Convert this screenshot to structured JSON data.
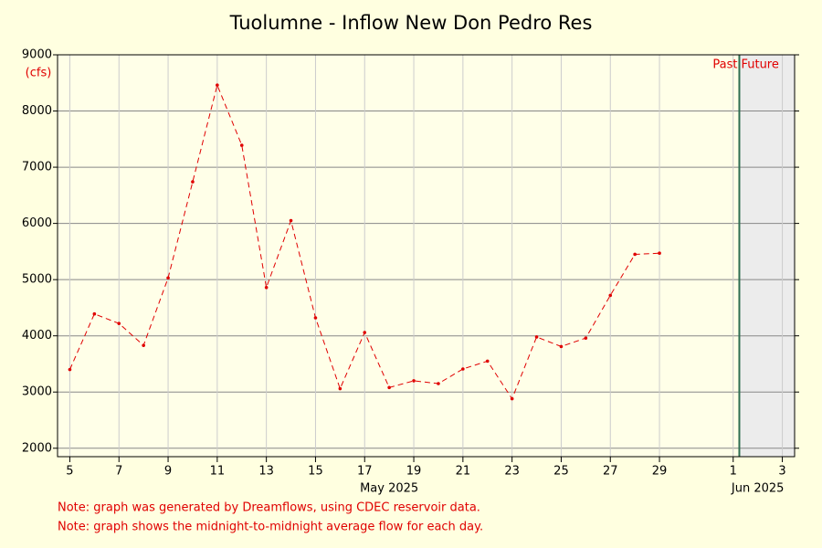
{
  "chart_data": {
    "type": "line",
    "title": "Tuolumne - Inflow New Don Pedro Res",
    "y_label": "(cfs)",
    "x": [
      "2025-05-05",
      "2025-05-06",
      "2025-05-07",
      "2025-05-08",
      "2025-05-09",
      "2025-05-10",
      "2025-05-11",
      "2025-05-12",
      "2025-05-13",
      "2025-05-14",
      "2025-05-15",
      "2025-05-16",
      "2025-05-17",
      "2025-05-18",
      "2025-05-19",
      "2025-05-20",
      "2025-05-21",
      "2025-05-22",
      "2025-05-23",
      "2025-05-24",
      "2025-05-25",
      "2025-05-26",
      "2025-05-27",
      "2025-05-28",
      "2025-05-29"
    ],
    "series": [
      {
        "name": "Inflow",
        "color": "#e00000",
        "values": [
          3400,
          4390,
          4220,
          3830,
          5030,
          6740,
          8460,
          7390,
          4860,
          6050,
          4320,
          3060,
          4060,
          3080,
          3200,
          3150,
          3410,
          3550,
          2880,
          3980,
          3810,
          3960,
          4720,
          5450,
          5470
        ]
      }
    ],
    "xlim": [
      "2025-05-04T12:00:00Z",
      "2025-06-03T12:00:00Z"
    ],
    "xticks": [
      {
        "value": "2025-05-05",
        "label": "5"
      },
      {
        "value": "2025-05-07",
        "label": "7"
      },
      {
        "value": "2025-05-09",
        "label": "9"
      },
      {
        "value": "2025-05-11",
        "label": "11"
      },
      {
        "value": "2025-05-13",
        "label": "13"
      },
      {
        "value": "2025-05-15",
        "label": "15"
      },
      {
        "value": "2025-05-17",
        "label": "17"
      },
      {
        "value": "2025-05-19",
        "label": "19"
      },
      {
        "value": "2025-05-21",
        "label": "21"
      },
      {
        "value": "2025-05-23",
        "label": "23"
      },
      {
        "value": "2025-05-25",
        "label": "25"
      },
      {
        "value": "2025-05-27",
        "label": "27"
      },
      {
        "value": "2025-05-29",
        "label": "29"
      },
      {
        "value": "2025-06-01",
        "label": "1"
      },
      {
        "value": "2025-06-03",
        "label": "3"
      }
    ],
    "month_labels": [
      {
        "value": "2025-05-18",
        "label": "May 2025"
      },
      {
        "value": "2025-06-02",
        "label": "Jun 2025"
      }
    ],
    "ylim": [
      1850,
      9000
    ],
    "yticks": [
      2000,
      3000,
      4000,
      5000,
      6000,
      7000,
      8000,
      9000
    ],
    "grid": true,
    "now": "2025-06-01T06:00:00Z",
    "past_label": "Past",
    "future_label": "Future",
    "notes": [
      "Note: graph was generated by Dreamflows, using CDEC reservoir data.",
      "Note: graph shows the midnight-to-midnight average flow for each day."
    ]
  }
}
